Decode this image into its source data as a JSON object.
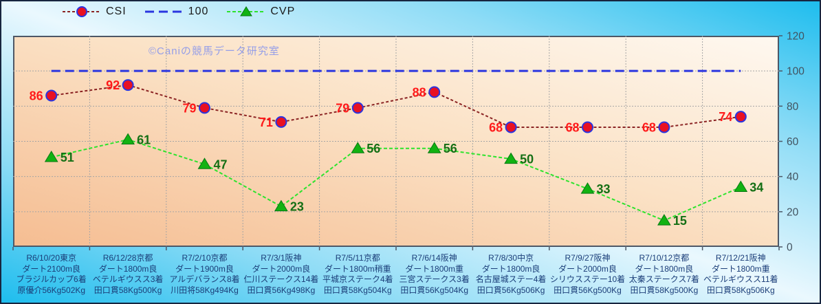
{
  "watermark": "©Caniの競馬データ研究室",
  "colors": {
    "background_cyan": "#1ebdee",
    "background_light": "#eaf8fe",
    "plot_light": "#fef8f0",
    "plot_orange": "#f5bd92",
    "grid": "#a5a5a5",
    "axis_border": "#4d5766",
    "y_tick_label": "#42525f",
    "x_label": "#1a3d78",
    "watermark": "#959ee8"
  },
  "chart_data": {
    "type": "line",
    "title": "",
    "legend_position": "top",
    "grid": true,
    "ylim": [
      0,
      120
    ],
    "y_ticks": [
      0,
      20,
      40,
      60,
      80,
      100,
      120
    ],
    "x_categories": [
      [
        "R6/10/20東京",
        "ダート2100m良",
        "ブラジルカップ6着",
        "原優介56Kg502Kg"
      ],
      [
        "R6/12/28京都",
        "ダート1800m良",
        "ベテルギウスス3着",
        "田口貫58Kg500Kg"
      ],
      [
        "R7/2/10京都",
        "ダート1900m良",
        "アルデバランス8着",
        "川田将58Kg494Kg"
      ],
      [
        "R7/3/1阪神",
        "ダート2000m良",
        "仁川ステークス14着",
        "田口貫56Kg498Kg"
      ],
      [
        "R7/5/11京都",
        "ダート1800m稍重",
        "平城京ステーク4着",
        "田口貫58Kg504Kg"
      ],
      [
        "R7/6/14阪神",
        "ダート1800m重",
        "三宮ステークス3着",
        "田口貫56Kg504Kg"
      ],
      [
        "R7/8/30中京",
        "ダート1800m良",
        "名古屋城ステー4着",
        "田口貫56Kg506Kg"
      ],
      [
        "R7/9/27阪神",
        "ダート2000m良",
        "シリウスステー10着",
        "田口貫56Kg500Kg"
      ],
      [
        "R7/10/12京都",
        "ダート1800m良",
        "太秦ステークス7着",
        "田口貫58Kg500Kg"
      ],
      [
        "R7/12/21阪神",
        "ダート1800m重",
        "ベテルギウスス11着",
        "田口貫58Kg506Kg"
      ]
    ],
    "series": [
      {
        "name": "CSI",
        "values": [
          86,
          92,
          79,
          71,
          79,
          88,
          68,
          68,
          68,
          74
        ],
        "marker": "circle",
        "label_side": "left",
        "line_color": "#8b2323",
        "line_dash": "4 3",
        "line_width": 2,
        "marker_fill": "#e81123",
        "marker_stroke": "#2a35e0",
        "label_color": "#ff1a1a"
      },
      {
        "name": "100",
        "values": [
          100,
          100,
          100,
          100,
          100,
          100,
          100,
          100,
          100,
          100
        ],
        "marker": "none",
        "label_side": "none",
        "line_color": "#2a35e0",
        "line_dash": "13 7",
        "line_width": 3,
        "marker_fill": "",
        "marker_stroke": "",
        "label_color": ""
      },
      {
        "name": "CVP",
        "values": [
          51,
          61,
          47,
          23,
          56,
          56,
          50,
          33,
          15,
          34
        ],
        "marker": "triangle",
        "label_side": "right",
        "line_color": "#2de32d",
        "line_dash": "5 3",
        "line_width": 2,
        "marker_fill": "#12b212",
        "marker_stroke": "#077a12",
        "label_color": "#156f15"
      }
    ]
  }
}
